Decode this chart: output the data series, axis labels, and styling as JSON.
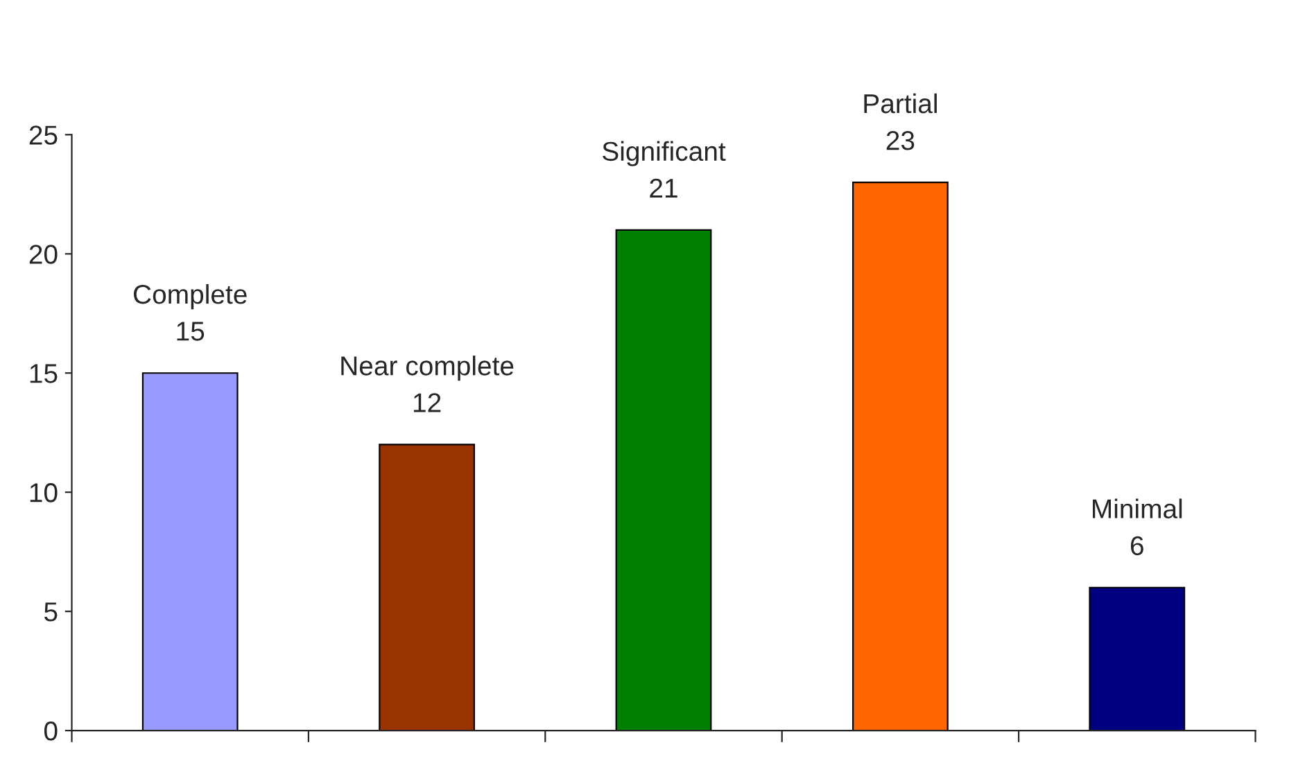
{
  "chart_data": {
    "type": "bar",
    "categories": [
      "Complete",
      "Near complete",
      "Significant",
      "Partial",
      "Minimal"
    ],
    "values": [
      15,
      12,
      21,
      23,
      6
    ],
    "colors": [
      "#9999ff",
      "#993300",
      "#008000",
      "#ff6600",
      "#000080"
    ],
    "ylim": [
      0,
      25
    ],
    "yticks": [
      0,
      5,
      10,
      15,
      20,
      25
    ],
    "grid": false,
    "data_labels": true,
    "tick_labels": "y"
  }
}
